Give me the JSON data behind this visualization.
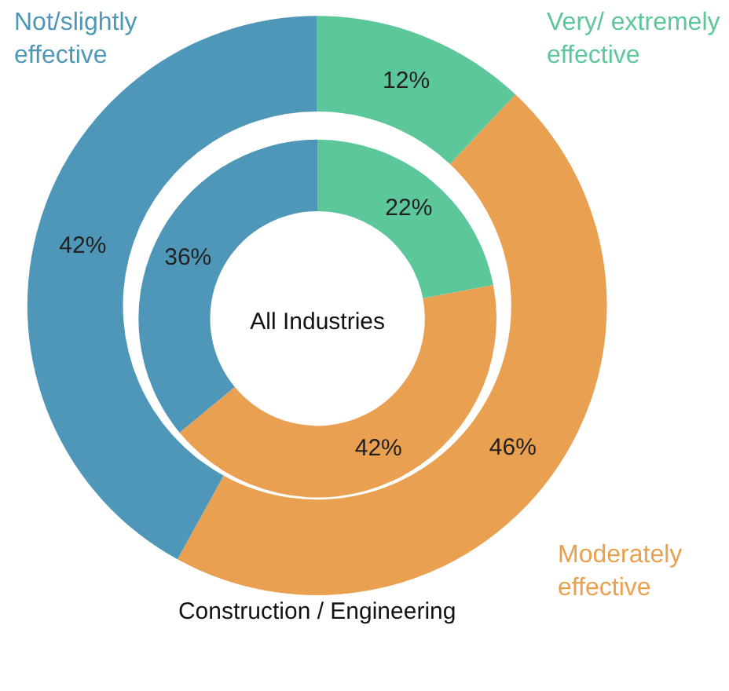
{
  "chart_data": {
    "type": "donut",
    "categories": [
      "Very/ extremely effective",
      "Moderately effective",
      "Not/slightly effective"
    ],
    "colors": [
      "#5cc79a",
      "#e9a050",
      "#4f97b8"
    ],
    "legend": false,
    "series": [
      {
        "name": "Construction / Engineering",
        "values": [
          12,
          46,
          42
        ],
        "value_labels": [
          "12%",
          "46%",
          "42%"
        ]
      },
      {
        "name": "All Industries",
        "values": [
          22,
          42,
          36
        ],
        "value_labels": [
          "22%",
          "42%",
          "36%"
        ]
      }
    ]
  }
}
